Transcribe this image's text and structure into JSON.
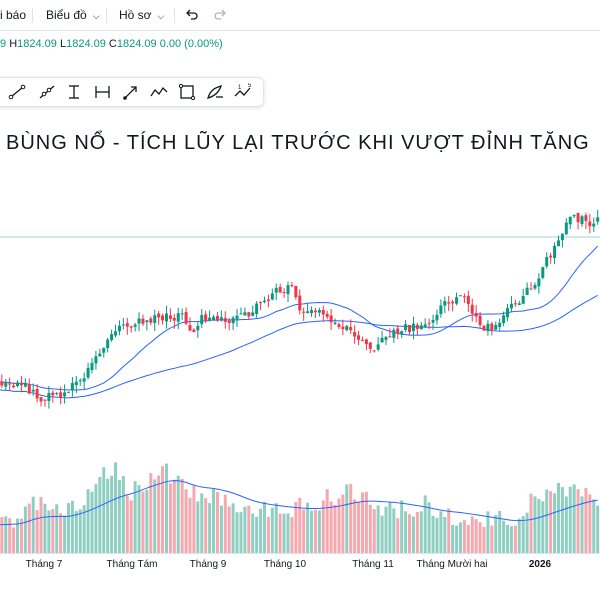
{
  "topbar": {
    "alerts_label": "i báo",
    "chart_menu_label": "Biểu đồ",
    "profile_menu_label": "Hồ sơ",
    "undo_icon": "undo-icon",
    "redo_icon": "redo-icon"
  },
  "ohlc": {
    "o_tail": "9",
    "h_key": "H",
    "h_val": "1824.09",
    "l_key": "L",
    "l_val": "1824.09",
    "c_key": "C",
    "c_val": "1824.09",
    "change": "0.00 (0.00%)"
  },
  "toolbar": {
    "tools": [
      "trend-line-icon",
      "ray-icon",
      "vertical-range-icon",
      "horizontal-range-icon",
      "arrow-marker-icon",
      "path-icon",
      "rectangle-icon",
      "brush-icon",
      "elliott-wave-icon"
    ],
    "wave_labels": [
      "1",
      "5"
    ]
  },
  "chart_data": {
    "type": "candlestick",
    "title": "BÙNG NỔ - TÍCH LŨY LẠI TRƯỚC KHI VƯỢT ĐỈNH TĂNG",
    "x_tick_labels": [
      "Tháng 7",
      "Tháng Tám",
      "Tháng 9",
      "Tháng 10",
      "Tháng 11",
      "Tháng Mười hai",
      "2026"
    ],
    "x_tick_bold": [
      false,
      false,
      false,
      false,
      false,
      false,
      true
    ],
    "colors": {
      "up": "#089981",
      "down": "#f23645",
      "vol_up": "#8fcfc2",
      "vol_down": "#f6a8ae",
      "ma": "#2962ff",
      "price_line": "#9fd6cc"
    },
    "key_levels": [
      {
        "period": "Tháng 7",
        "price": "1824.09"
      }
    ],
    "price_path": [
      {
        "t": 0,
        "v": 130
      },
      {
        "t": 8,
        "v": 127
      },
      {
        "t": 12,
        "v": 118
      },
      {
        "t": 18,
        "v": 122
      },
      {
        "t": 23,
        "v": 135
      },
      {
        "t": 27,
        "v": 152
      },
      {
        "t": 31,
        "v": 167
      },
      {
        "t": 36,
        "v": 174
      },
      {
        "t": 43,
        "v": 178
      },
      {
        "t": 48,
        "v": 179
      },
      {
        "t": 50,
        "v": 166
      },
      {
        "t": 53,
        "v": 176
      },
      {
        "t": 56,
        "v": 175
      },
      {
        "t": 62,
        "v": 176
      },
      {
        "t": 68,
        "v": 187
      },
      {
        "t": 72,
        "v": 197
      },
      {
        "t": 76,
        "v": 200
      },
      {
        "t": 78,
        "v": 181
      },
      {
        "t": 82,
        "v": 182
      },
      {
        "t": 86,
        "v": 174
      },
      {
        "t": 90,
        "v": 170
      },
      {
        "t": 93,
        "v": 163
      },
      {
        "t": 96,
        "v": 153
      },
      {
        "t": 99,
        "v": 161
      },
      {
        "t": 103,
        "v": 168
      },
      {
        "t": 107,
        "v": 171
      },
      {
        "t": 111,
        "v": 174
      },
      {
        "t": 115,
        "v": 187
      },
      {
        "t": 118,
        "v": 192
      },
      {
        "t": 121,
        "v": 189
      },
      {
        "t": 124,
        "v": 170
      },
      {
        "t": 126,
        "v": 170
      },
      {
        "t": 129,
        "v": 174
      },
      {
        "t": 133,
        "v": 188
      },
      {
        "t": 137,
        "v": 199
      },
      {
        "t": 140,
        "v": 214
      },
      {
        "t": 143,
        "v": 228
      },
      {
        "t": 146,
        "v": 247
      },
      {
        "t": 148,
        "v": 251
      },
      {
        "t": 150,
        "v": 249
      },
      {
        "t": 152,
        "v": 243
      },
      {
        "t": 154,
        "v": 248
      }
    ],
    "volume_path": [
      {
        "t": 0,
        "v": 28
      },
      {
        "t": 6,
        "v": 30
      },
      {
        "t": 10,
        "v": 48
      },
      {
        "t": 18,
        "v": 35
      },
      {
        "t": 26,
        "v": 65
      },
      {
        "t": 30,
        "v": 85
      },
      {
        "t": 35,
        "v": 60
      },
      {
        "t": 44,
        "v": 80
      },
      {
        "t": 50,
        "v": 55
      },
      {
        "t": 60,
        "v": 50
      },
      {
        "t": 70,
        "v": 42
      },
      {
        "t": 80,
        "v": 45
      },
      {
        "t": 86,
        "v": 55
      },
      {
        "t": 92,
        "v": 60
      },
      {
        "t": 98,
        "v": 40
      },
      {
        "t": 110,
        "v": 45
      },
      {
        "t": 120,
        "v": 30
      },
      {
        "t": 132,
        "v": 32
      },
      {
        "t": 140,
        "v": 55
      },
      {
        "t": 146,
        "v": 58
      },
      {
        "t": 154,
        "v": 50
      }
    ],
    "n_bars": 155
  }
}
